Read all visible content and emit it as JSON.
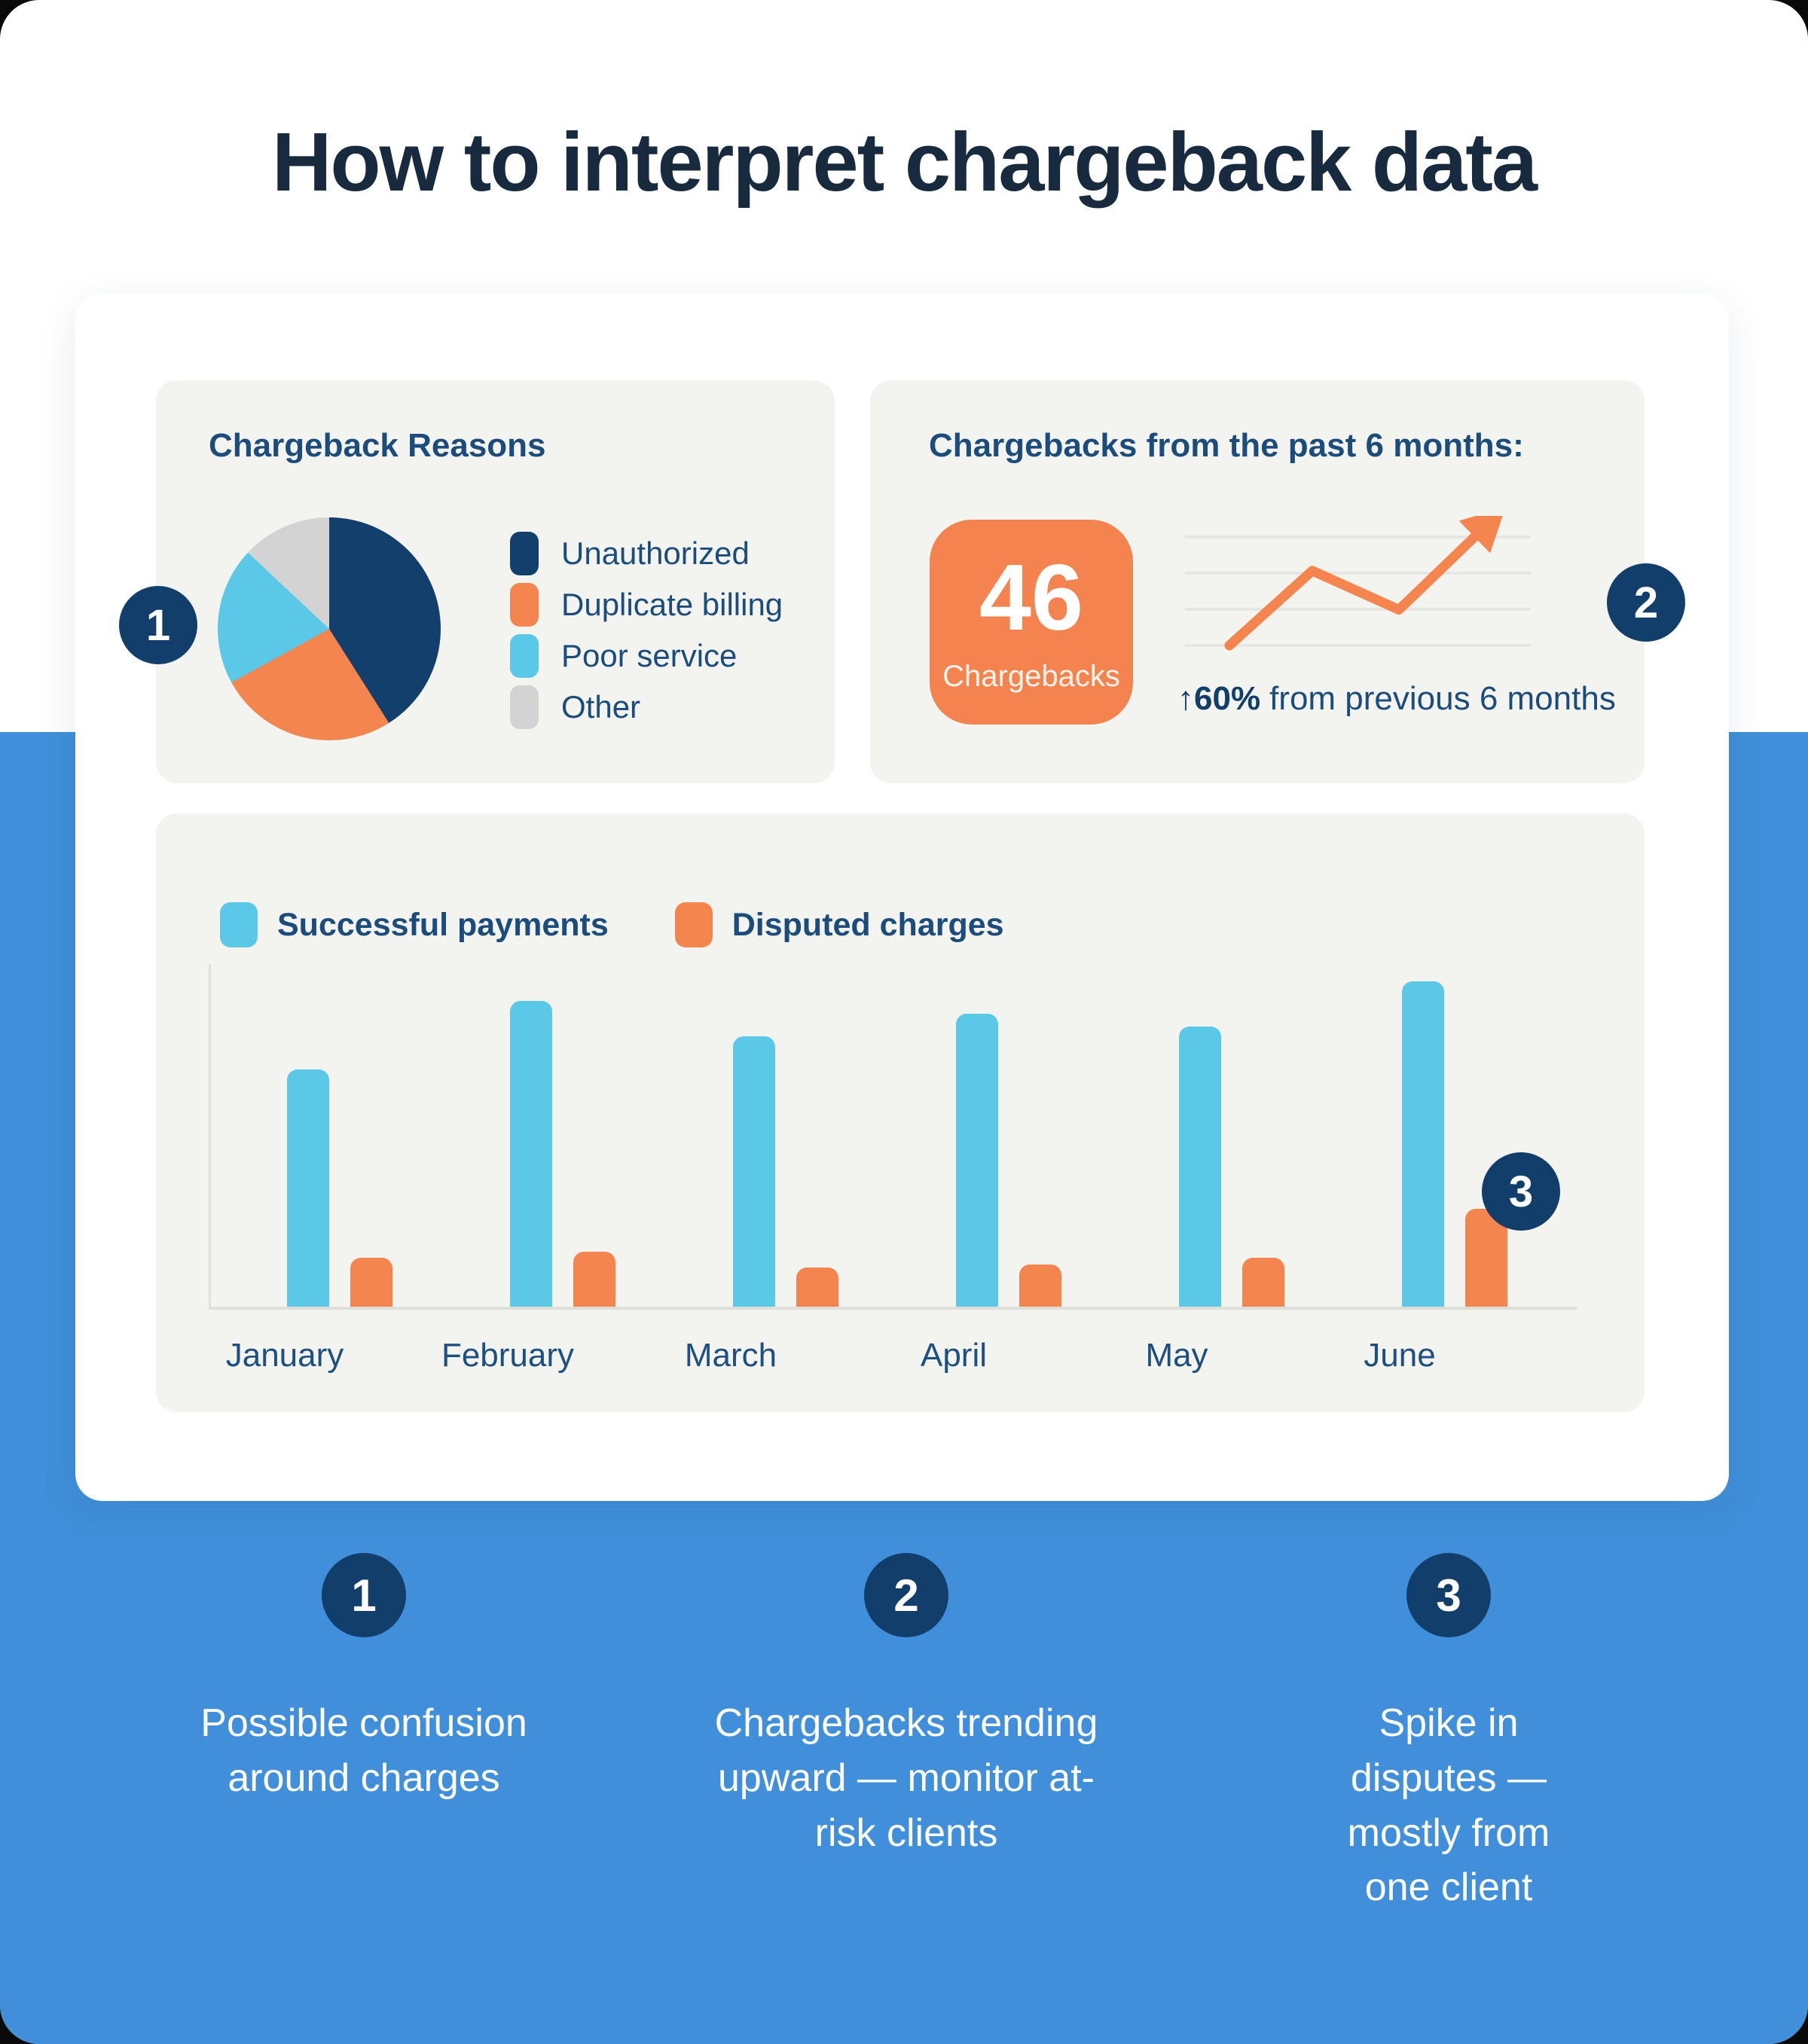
{
  "page": {
    "title": "How to interpret chargeback data"
  },
  "colors": {
    "background_bottom": "#418fda",
    "panel": "#ffffff",
    "card": "#f3f3f0",
    "navy_dark": "#172a3e",
    "navy_heading": "#1b4c7c",
    "badge_navy": "#123e6b",
    "pie_navy": "#133f6c",
    "orange": "#f5854e",
    "sky_blue": "#5ac8e6",
    "gray_slice": "#d3d3d4",
    "gridline": "#e4e4e0"
  },
  "pie_card": {
    "title": "Chargeback Reasons",
    "legend": [
      {
        "label": "Unauthorized",
        "color": "#133f6c"
      },
      {
        "label": "Duplicate billing",
        "color": "#f5854e"
      },
      {
        "label": "Poor service",
        "color": "#5ac8e6"
      },
      {
        "label": "Other",
        "color": "#d3d3d4"
      }
    ]
  },
  "six_months_card": {
    "title": "Chargebacks from the past 6 months:",
    "stat_value": "46",
    "stat_label": "Chargebacks",
    "delta_arrow": "↑",
    "delta_value": "60%",
    "delta_text": "from previous 6 months"
  },
  "bars_card": {
    "legend": [
      {
        "label": "Successful payments",
        "color": "#5ac8e6"
      },
      {
        "label": "Disputed charges",
        "color": "#f5854e"
      }
    ]
  },
  "annotations": {
    "badge1": "1",
    "badge2": "2",
    "badge3": "3"
  },
  "takeaways": [
    {
      "num": "1",
      "text": "Possible confusion around charges"
    },
    {
      "num": "2",
      "text": "Chargebacks trending upward — monitor at-risk clients"
    },
    {
      "num": "3",
      "text": "Spike in disputes — mostly from one client"
    }
  ],
  "chart_data": [
    {
      "type": "pie",
      "title": "Chargeback Reasons",
      "categories": [
        "Unauthorized",
        "Duplicate billing",
        "Poor service",
        "Other"
      ],
      "values": [
        41,
        26,
        20,
        13
      ],
      "unit": "percent (estimated from slice angles)",
      "colors": [
        "#133f6c",
        "#f5854e",
        "#5ac8e6",
        "#d3d3d4"
      ],
      "legend_position": "right",
      "start_angle": "top, clockwise"
    },
    {
      "type": "line",
      "title": "Chargebacks from the past 6 months:",
      "x": [
        1,
        2,
        3,
        4
      ],
      "values": [
        0,
        67,
        32,
        110
      ],
      "ylim": [
        0,
        110
      ],
      "grid": "4 horizontal gridlines, no axis labels",
      "color": "#f5854e",
      "arrow_end": true,
      "annotation": "↑60% from previous 6 months"
    },
    {
      "type": "bar",
      "categories": [
        "January",
        "February",
        "March",
        "April",
        "May",
        "June"
      ],
      "series": [
        {
          "name": "Successful payments",
          "color": "#5ac8e6",
          "values": [
            73,
            94,
            83,
            90,
            86,
            100
          ]
        },
        {
          "name": "Disputed charges",
          "color": "#f5854e",
          "values": [
            15,
            17,
            12,
            13,
            15,
            30
          ]
        }
      ],
      "xlabel": "",
      "ylabel": "",
      "ylim": [
        0,
        100
      ],
      "unit": "relative height (no y-axis labels shown)",
      "grid": false,
      "legend_position": "top-left"
    }
  ]
}
